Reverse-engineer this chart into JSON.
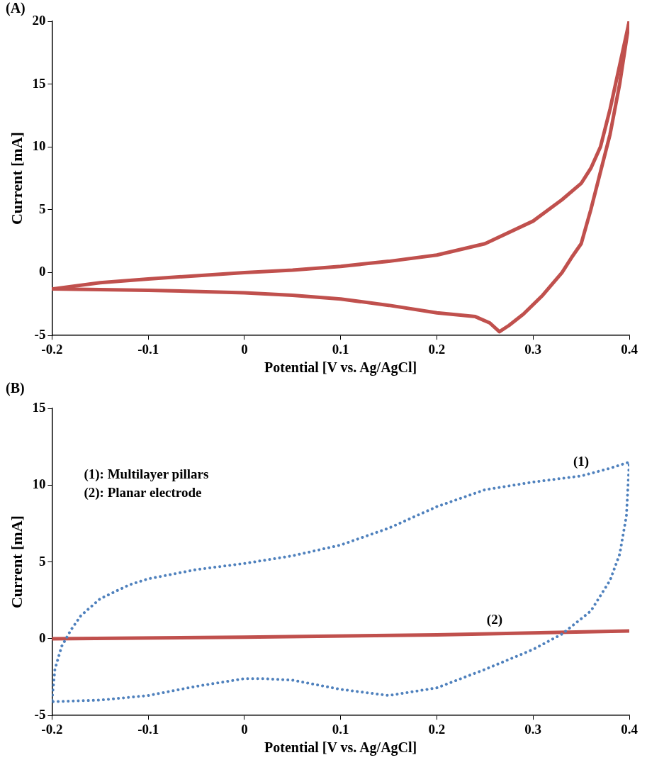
{
  "chart_data": [
    {
      "type": "line",
      "title": "(A)",
      "xlabel": "Potential [V vs. Ag/AgCl]",
      "ylabel": "Current [mA]",
      "xlim": [
        -0.2,
        0.4
      ],
      "xticks": [
        -0.2,
        -0.1,
        0,
        0.1,
        0.2,
        0.3,
        0.4
      ],
      "ylim": [
        -5,
        20
      ],
      "yticks": [
        -5,
        0,
        5,
        10,
        15,
        20
      ],
      "marker": "none",
      "legend": false,
      "grid": false,
      "series": [
        {
          "color": "#c0504d",
          "line_style": "solid",
          "x": [
            -0.2,
            -0.15,
            -0.1,
            -0.05,
            0,
            0.05,
            0.1,
            0.15,
            0.2,
            0.25,
            0.3,
            0.33,
            0.35,
            0.36,
            0.37,
            0.38,
            0.39,
            0.4
          ],
          "values": [
            -1.3,
            -0.8,
            -0.5,
            -0.25,
            0,
            0.2,
            0.5,
            0.9,
            1.4,
            2.3,
            4.1,
            5.8,
            7.1,
            8.3,
            10,
            13,
            16.5,
            20
          ]
        },
        {
          "color": "#c0504d",
          "line_style": "solid",
          "x": [
            -0.2,
            -0.1,
            0,
            0.05,
            0.1,
            0.15,
            0.2,
            0.24,
            0.255,
            0.265,
            0.275,
            0.29,
            0.31,
            0.33,
            0.34,
            0.35,
            0.36,
            0.37,
            0.38,
            0.39,
            0.4
          ],
          "values": [
            -1.3,
            -1.4,
            -1.6,
            -1.8,
            -2.1,
            -2.6,
            -3.2,
            -3.5,
            -4,
            -4.7,
            -4.2,
            -3.3,
            -1.8,
            0,
            1.2,
            2.3,
            5,
            8,
            11,
            15,
            20
          ]
        }
      ]
    },
    {
      "type": "line",
      "title": "(B)",
      "xlabel": "Potential [V vs. Ag/AgCl]",
      "ylabel": "Current [mA]",
      "xlim": [
        -0.2,
        0.4
      ],
      "xticks": [
        -0.2,
        -0.1,
        0,
        0.1,
        0.2,
        0.3,
        0.4
      ],
      "ylim": [
        -5,
        15
      ],
      "yticks": [
        -5,
        0,
        5,
        10,
        15
      ],
      "marker": "none",
      "legend": false,
      "grid": false,
      "annotations": [
        "(1): Multilayer pillars",
        "(2): Planar electrode",
        {
          "text": "(1)",
          "x": 0.35,
          "y": 10.6
        },
        {
          "text": "(2)",
          "x": 0.26,
          "y": 0.3
        }
      ],
      "series": [
        {
          "color": "#4f81bd",
          "line_style": "dotted",
          "x": [
            -0.2,
            -0.197,
            -0.19,
            -0.18,
            -0.17,
            -0.15,
            -0.12,
            -0.1,
            -0.05,
            0,
            0.05,
            0.1,
            0.15,
            0.2,
            0.25,
            0.3,
            0.35,
            0.38,
            0.4,
            0.397,
            0.39,
            0.38,
            0.36,
            0.33,
            0.3,
            0.25,
            0.2,
            0.15,
            0.1,
            0.05,
            0.02,
            0,
            -0.05,
            -0.1,
            -0.15,
            -0.2
          ],
          "values": [
            -4,
            -2,
            -0.5,
            0.6,
            1.5,
            2.6,
            3.5,
            3.9,
            4.5,
            4.9,
            5.4,
            6.1,
            7.2,
            8.6,
            9.7,
            10.2,
            10.6,
            11.1,
            11.5,
            8,
            5.5,
            3.8,
            1.8,
            0.3,
            -0.7,
            -2,
            -3.2,
            -3.7,
            -3.3,
            -2.7,
            -2.6,
            -2.6,
            -3.1,
            -3.7,
            -4,
            -4.1
          ]
        },
        {
          "color": "#c0504d",
          "line_style": "solid",
          "x": [
            -0.2,
            0,
            0.2,
            0.4
          ],
          "values": [
            0,
            0.1,
            0.25,
            0.5
          ]
        }
      ]
    }
  ]
}
